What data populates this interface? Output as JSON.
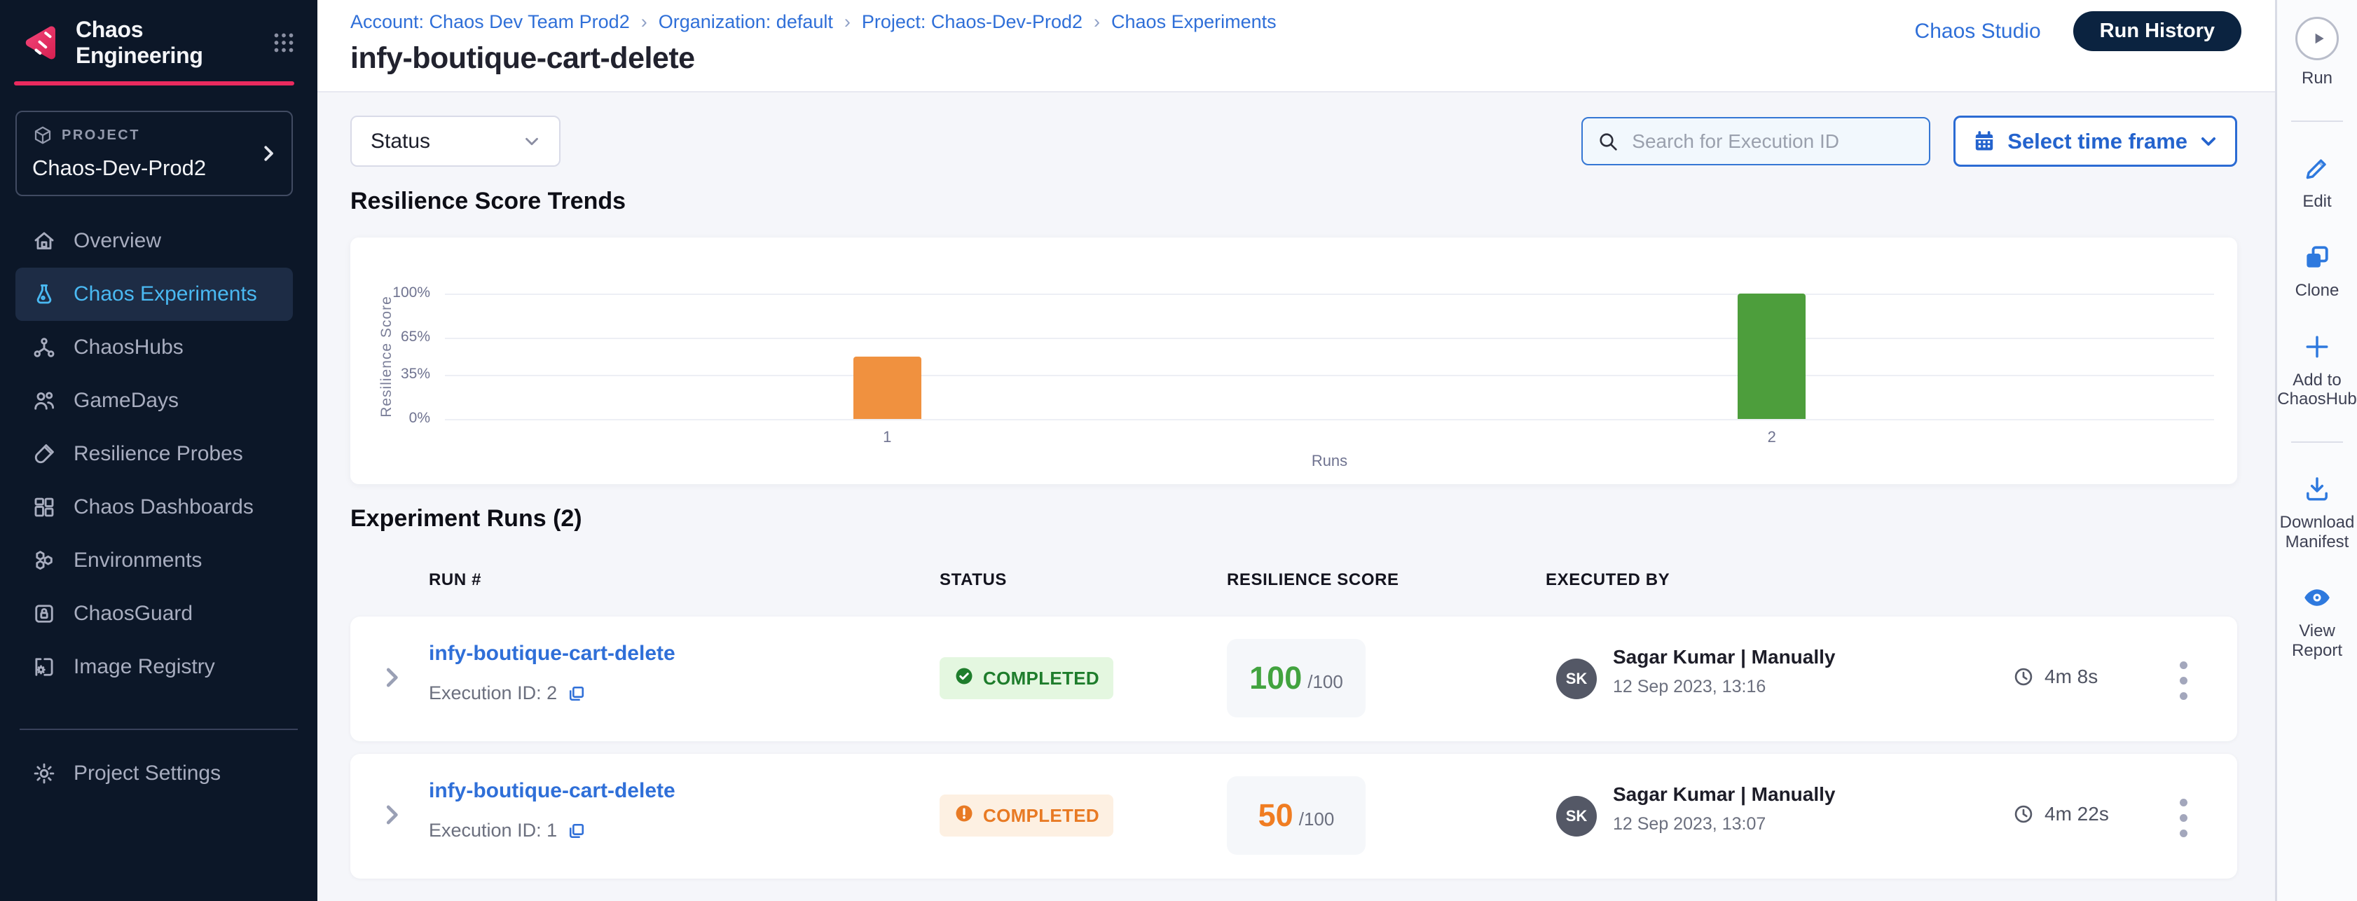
{
  "app": {
    "name": "Chaos Engineering"
  },
  "sidebar": {
    "project_label": "PROJECT",
    "project_name": "Chaos-Dev-Prod2",
    "items": [
      {
        "id": "overview",
        "label": "Overview",
        "icon": "home",
        "active": false
      },
      {
        "id": "chaos-experiments",
        "label": "Chaos Experiments",
        "icon": "flask",
        "active": true
      },
      {
        "id": "chaoshubs",
        "label": "ChaosHubs",
        "icon": "hub",
        "active": false
      },
      {
        "id": "gamedays",
        "label": "GameDays",
        "icon": "people",
        "active": false
      },
      {
        "id": "resilience-probes",
        "label": "Resilience Probes",
        "icon": "testtube",
        "active": false
      },
      {
        "id": "chaos-dashboards",
        "label": "Chaos Dashboards",
        "icon": "dashboard",
        "active": false
      },
      {
        "id": "environments",
        "label": "Environments",
        "icon": "hexagons",
        "active": false
      },
      {
        "id": "chaosguard",
        "label": "ChaosGuard",
        "icon": "lockcard",
        "active": false
      },
      {
        "id": "image-registry",
        "label": "Image Registry",
        "icon": "gearcard",
        "active": false
      }
    ],
    "settings_item": {
      "id": "project-settings",
      "label": "Project Settings",
      "icon": "gear"
    }
  },
  "breadcrumb": {
    "items": [
      "Account: Chaos Dev Team Prod2",
      "Organization: default",
      "Project: Chaos-Dev-Prod2",
      "Chaos Experiments"
    ]
  },
  "page": {
    "title": "infy-boutique-cart-delete"
  },
  "header_actions": {
    "studio_link": "Chaos Studio",
    "run_history": "Run History"
  },
  "filters": {
    "status_label": "Status",
    "search_placeholder": "Search for Execution ID",
    "time_frame_label": "Select time frame"
  },
  "sections": {
    "trends_title": "Resilience Score Trends",
    "runs_title": "Experiment Runs (2)"
  },
  "chart_data": {
    "type": "bar",
    "title": "Resilience Score Trends",
    "categories": [
      "1",
      "2"
    ],
    "values": [
      50,
      100
    ],
    "bar_colors": [
      "#f0913f",
      "#4d9e3c"
    ],
    "xlabel": "Runs",
    "ylabel": "Resilience Score",
    "ylim": [
      0,
      100
    ],
    "ytick_values": [
      0,
      35,
      65,
      100
    ],
    "ytick_labels": [
      "0%",
      "35%",
      "65%",
      "100%"
    ],
    "grid": true,
    "legend": "none"
  },
  "table": {
    "headers": [
      "RUN #",
      "STATUS",
      "RESILIENCE SCORE",
      "EXECUTED BY"
    ],
    "rows": [
      {
        "name": "infy-boutique-cart-delete",
        "exec_label": "Execution ID: 2",
        "status_label": "COMPLETED",
        "status_kind": "success",
        "score": "100",
        "score_total": "/100",
        "avatar": "SK",
        "executed_by": "Sagar Kumar | Manually",
        "timestamp": "12 Sep 2023, 13:16",
        "duration": "4m 8s"
      },
      {
        "name": "infy-boutique-cart-delete",
        "exec_label": "Execution ID: 1",
        "status_label": "COMPLETED",
        "status_kind": "warning",
        "score": "50",
        "score_total": "/100",
        "avatar": "SK",
        "executed_by": "Sagar Kumar | Manually",
        "timestamp": "12 Sep 2023, 13:07",
        "duration": "4m 22s"
      }
    ]
  },
  "right_rail": {
    "actions": [
      {
        "id": "run",
        "label": "Run",
        "icon": "play",
        "circle": true,
        "divider_after": true
      },
      {
        "id": "edit",
        "label": "Edit",
        "icon": "pencil"
      },
      {
        "id": "clone",
        "label": "Clone",
        "icon": "clone"
      },
      {
        "id": "add-to-chaoshub",
        "label": "Add to\nChaosHub",
        "icon": "plus",
        "divider_after": true
      },
      {
        "id": "download-manifest",
        "label": "Download\nManifest",
        "icon": "download"
      },
      {
        "id": "view-report",
        "label": "View\nReport",
        "icon": "eye"
      }
    ]
  }
}
